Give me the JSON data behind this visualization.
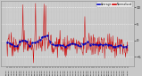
{
  "bg_color": "#c8c8c8",
  "plot_bg_color": "#c8c8c8",
  "grid_color": "#ffffff",
  "red_color": "#cc0000",
  "blue_color": "#0000bb",
  "n_points": 288,
  "y_min": -8,
  "y_max": 12,
  "y_ticks": [
    -5,
    0,
    5,
    10
  ],
  "spike_indices": [
    38,
    68,
    88,
    92,
    185
  ],
  "spike_heights": [
    10.8,
    11.2,
    11.0,
    10.5,
    7.2
  ],
  "base_mean": -1.5,
  "base_std": 1.8,
  "legend_labels": [
    "Average",
    "Normalized"
  ],
  "legend_colors": [
    "#0000bb",
    "#cc0000"
  ]
}
